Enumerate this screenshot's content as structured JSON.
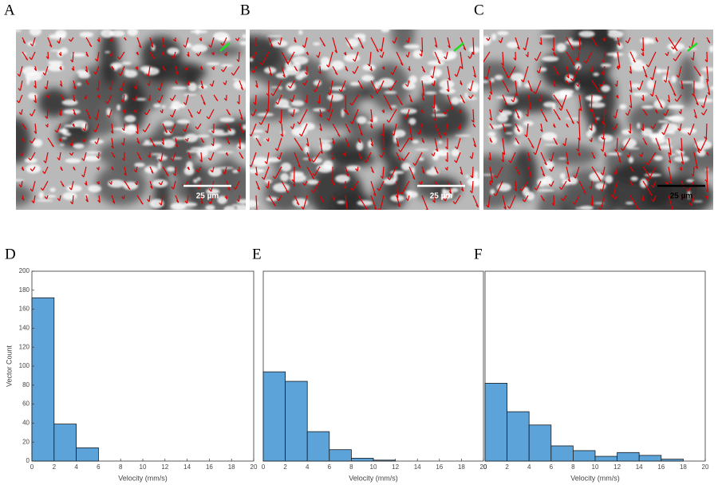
{
  "images": [
    {
      "label": "A",
      "scale_bar": "25 µm",
      "scale_color": "#ffffff"
    },
    {
      "label": "B",
      "scale_bar": "25 µm",
      "scale_color": "#ffffff"
    },
    {
      "label": "C",
      "scale_bar": "25 µm",
      "scale_color": "#000000"
    }
  ],
  "chart_data": [
    {
      "type": "histogram",
      "panel": "D",
      "xlabel": "Velocity (mm/s)",
      "ylabel": "Vector Count",
      "bins": [
        0,
        2,
        4,
        6,
        8,
        10,
        12,
        14,
        16,
        18,
        20
      ],
      "values": [
        172,
        39,
        14,
        0,
        0,
        0,
        0,
        0,
        0,
        0
      ],
      "color": "#5ba3d9",
      "xlim": [
        0,
        20
      ],
      "xticks": [
        0,
        2,
        4,
        6,
        8,
        10,
        12,
        14,
        16,
        18,
        20
      ],
      "ylim": [
        0,
        200
      ],
      "yticks": [
        0,
        20,
        40,
        60,
        80,
        100,
        120,
        140,
        160,
        180,
        200
      ]
    },
    {
      "type": "histogram",
      "panel": "E",
      "xlabel": "Velocity (mm/s)",
      "bins": [
        0,
        2,
        4,
        6,
        8,
        10,
        12,
        14,
        16,
        18,
        20
      ],
      "values": [
        94,
        84,
        31,
        12,
        3,
        1,
        0,
        0,
        0,
        0
      ],
      "color": "#5ba3d9",
      "xlim": [
        0,
        20
      ],
      "xticks": [
        0,
        2,
        4,
        6,
        8,
        10,
        12,
        14,
        16,
        18,
        20
      ],
      "ylim": [
        0,
        200
      ]
    },
    {
      "type": "histogram",
      "panel": "F",
      "xlabel": "Velocity (mm/s)",
      "bins": [
        0,
        2,
        4,
        6,
        8,
        10,
        12,
        14,
        16,
        18,
        20
      ],
      "values": [
        82,
        52,
        38,
        16,
        11,
        5,
        9,
        6,
        2,
        0
      ],
      "color": "#5ba3d9",
      "xlim": [
        0,
        20
      ],
      "xticks": [
        0,
        2,
        4,
        6,
        8,
        10,
        12,
        14,
        16,
        18,
        20
      ],
      "ylim": [
        0,
        200
      ]
    }
  ]
}
